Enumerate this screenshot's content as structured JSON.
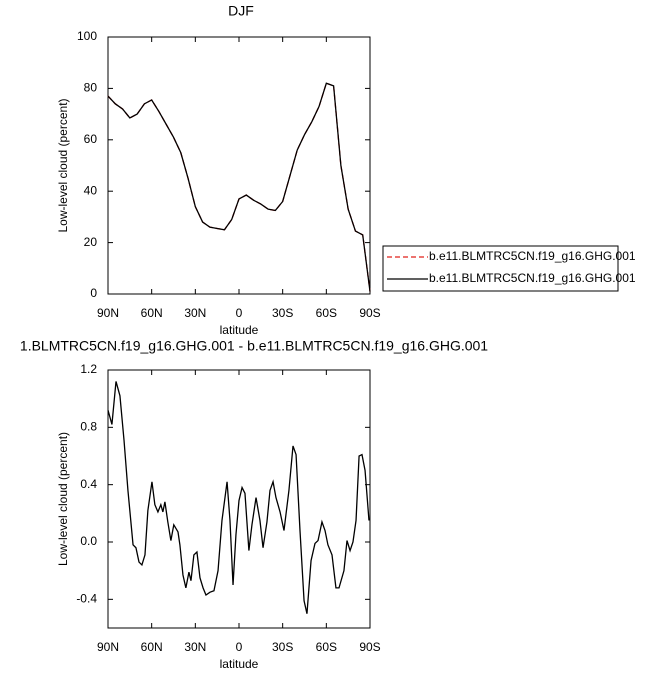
{
  "chart_data": [
    {
      "type": "line",
      "title": "DJF",
      "x_label": "latitude",
      "y_label": "Low-level cloud (percent)",
      "x": [
        90,
        85,
        80,
        75,
        70,
        65,
        60,
        55,
        50,
        45,
        40,
        35,
        30,
        25,
        20,
        15,
        10,
        5,
        0,
        -5,
        -10,
        -15,
        -20,
        -25,
        -30,
        -35,
        -40,
        -45,
        -50,
        -55,
        -60,
        -65,
        -70,
        -75,
        -80,
        -85,
        -90
      ],
      "series": [
        {
          "name": "b.e11.BLMTRC5CN.f19_g16.GHG.001",
          "color": "#e0201b",
          "dash": "dashed",
          "values": [
            77,
            74,
            72,
            68.5,
            70,
            74,
            75.5,
            71,
            66,
            61,
            55,
            45,
            34,
            28,
            26,
            25.5,
            25,
            29,
            37,
            38.5,
            36.5,
            35,
            33,
            32.5,
            36,
            46,
            56,
            62,
            67,
            73,
            82,
            81,
            50,
            33,
            24.5,
            23,
            1
          ]
        },
        {
          "name": "b.e11.BLMTRC5CN.f19_g16.GHG.001",
          "color": "#000000",
          "dash": "solid",
          "values": [
            77,
            74,
            72,
            68.5,
            70,
            74,
            75.5,
            71,
            66,
            61,
            55,
            45,
            34,
            28,
            26,
            25.5,
            25,
            29,
            37,
            38.5,
            36.5,
            35,
            33,
            32.5,
            36,
            46,
            56,
            62,
            67,
            73,
            82,
            81,
            50,
            33,
            24.5,
            23,
            1
          ]
        }
      ],
      "xlim": [
        90,
        -90
      ],
      "xticks": [
        {
          "value": 90,
          "label": "90N"
        },
        {
          "value": 60,
          "label": "60N"
        },
        {
          "value": 30,
          "label": "30N"
        },
        0,
        {
          "value": -30,
          "label": "30S"
        },
        {
          "value": -60,
          "label": "60S"
        },
        {
          "value": -90,
          "label": "90S"
        }
      ],
      "ylim": [
        0,
        100
      ],
      "yticks": [
        0,
        20,
        40,
        60,
        80,
        100
      ],
      "legend": "right"
    },
    {
      "type": "line",
      "title": "1.BLMTRC5CN.f19_g16.GHG.001 - b.e11.BLMTRC5CN.f19_g16.GHG.001",
      "x_label": "latitude",
      "y_label": "Low-level cloud (percent)",
      "x": [
        90,
        87.3,
        84.5,
        81.8,
        79.0,
        76.3,
        72.8,
        70.8,
        68.7,
        66.7,
        64.6,
        62.6,
        59.8,
        57.8,
        55.7,
        53.7,
        52.3,
        50.9,
        48.9,
        46.8,
        44.8,
        41.9,
        40.6,
        38.5,
        36.5,
        34.4,
        33.0,
        31.0,
        28.9,
        26.8,
        24.7,
        22.7,
        19.9,
        17.2,
        14.4,
        11.7,
        8.2,
        6.2,
        4.1,
        2.1,
        0.0,
        -2.1,
        -4.1,
        -6.8,
        -8.9,
        -11.7,
        -14.4,
        -16.5,
        -19.2,
        -21.3,
        -23.4,
        -25.4,
        -28.2,
        -30.9,
        -34.3,
        -37.1,
        -39.2,
        -41.9,
        -44.7,
        -46.7,
        -49.5,
        -52.2,
        -54.3,
        -57.0,
        -59.1,
        -61.1,
        -63.9,
        -66.6,
        -68.7,
        -72.1,
        -74.2,
        -76.3,
        -78.3,
        -80.4,
        -82.5,
        -84.5,
        -86.6,
        -89.3
      ],
      "series": [
        {
          "color": "#000000",
          "dash": "solid",
          "values": [
            0.92,
            0.82,
            1.12,
            1.02,
            0.71,
            0.36,
            -0.02,
            -0.04,
            -0.14,
            -0.16,
            -0.09,
            0.22,
            0.42,
            0.26,
            0.21,
            0.26,
            0.21,
            0.28,
            0.14,
            0.01,
            0.12,
            0.07,
            -0.02,
            -0.23,
            -0.32,
            -0.21,
            -0.27,
            -0.09,
            -0.07,
            -0.25,
            -0.32,
            -0.37,
            -0.35,
            -0.34,
            -0.2,
            0.15,
            0.42,
            0.15,
            -0.3,
            0.05,
            0.29,
            0.38,
            0.34,
            -0.06,
            0.12,
            0.31,
            0.15,
            -0.04,
            0.14,
            0.36,
            0.42,
            0.31,
            0.21,
            0.08,
            0.36,
            0.67,
            0.61,
            0.08,
            -0.41,
            -0.5,
            -0.13,
            -0.01,
            0.01,
            0.14,
            0.08,
            -0.02,
            -0.09,
            -0.32,
            -0.32,
            -0.2,
            0.01,
            -0.06,
            0,
            0.15,
            0.6,
            0.61,
            0.5,
            0.15
          ]
        }
      ],
      "xlim": [
        90,
        -90
      ],
      "xticks": [
        {
          "value": 90,
          "label": "90N"
        },
        {
          "value": 60,
          "label": "60N"
        },
        {
          "value": 30,
          "label": "30N"
        },
        0,
        {
          "value": -30,
          "label": "30S"
        },
        {
          "value": -60,
          "label": "60S"
        },
        {
          "value": -90,
          "label": "90S"
        }
      ],
      "ylim": [
        -0.6,
        1.2
      ],
      "yticks": [
        -0.4,
        {
          "value": 0,
          "label": "0.0"
        },
        0.4,
        0.8,
        1.2
      ]
    }
  ]
}
